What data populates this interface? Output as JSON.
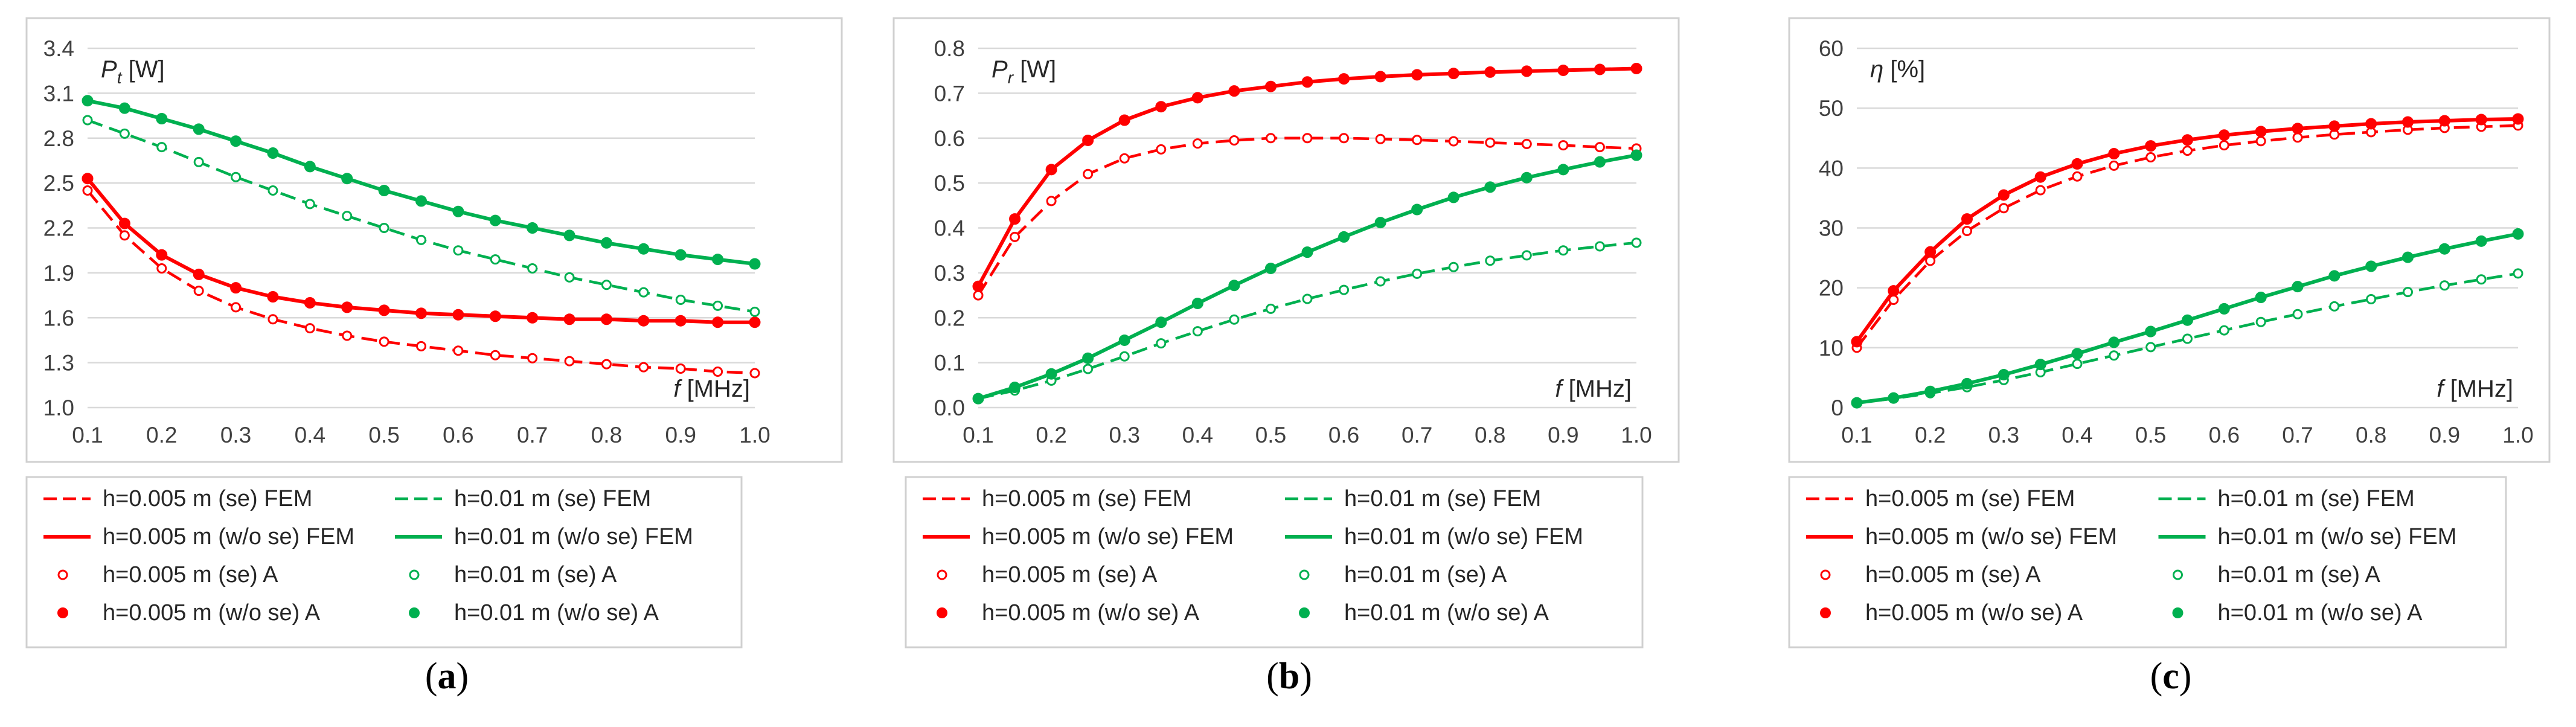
{
  "colors": {
    "red": "#FF0000",
    "green": "#00B050",
    "grid": "#D9D9D9",
    "border": "#D0D0D0"
  },
  "legend_entries": [
    "h=0.005 m (se) FEM",
    "h=0.01 m (se) FEM",
    "h=0.005 m (w/o se) FEM",
    "h=0.01 m (w/o se) FEM",
    "h=0.005 m (se) A",
    "h=0.01 m (se) A",
    "h=0.005 m (w/o se) A",
    "h=0.01 m (w/o se) A"
  ],
  "chart_data": [
    {
      "type": "line",
      "panel": "(a)",
      "panel_letter": "a",
      "ylabel": "P",
      "ylabel_sub": "t",
      "ylabel_unit": " [W]",
      "xlabel": "f",
      "xlabel_unit": " [MHz]",
      "xlim": [
        0.1,
        1.0
      ],
      "ylim": [
        1.0,
        3.4
      ],
      "yticks": [
        1.0,
        1.3,
        1.6,
        1.9,
        2.2,
        2.5,
        2.8,
        3.1,
        3.4
      ],
      "ytick_labels": [
        "1.0",
        "1.3",
        "1.6",
        "1.9",
        "2.2",
        "2.5",
        "2.8",
        "3.1",
        "3.4"
      ],
      "xticks": [
        0.1,
        0.2,
        0.3,
        0.4,
        0.5,
        0.6,
        0.7,
        0.8,
        0.9,
        1.0
      ],
      "xtick_labels": [
        "0.1",
        "0.2",
        "0.3",
        "0.4",
        "0.5",
        "0.6",
        "0.7",
        "0.8",
        "0.9",
        "1.0"
      ],
      "x": [
        0.1,
        0.15,
        0.2,
        0.25,
        0.3,
        0.35,
        0.4,
        0.45,
        0.5,
        0.55,
        0.6,
        0.65,
        0.7,
        0.75,
        0.8,
        0.85,
        0.9,
        0.95,
        1.0
      ],
      "series": [
        {
          "name": "h=0.005 m (se)",
          "color": "red",
          "values": [
            2.45,
            2.15,
            1.93,
            1.78,
            1.67,
            1.59,
            1.53,
            1.48,
            1.44,
            1.41,
            1.38,
            1.35,
            1.33,
            1.31,
            1.29,
            1.27,
            1.26,
            1.24,
            1.23
          ]
        },
        {
          "name": "h=0.005 m (w/o se)",
          "color": "red",
          "values": [
            2.53,
            2.23,
            2.02,
            1.89,
            1.8,
            1.74,
            1.7,
            1.67,
            1.65,
            1.63,
            1.62,
            1.61,
            1.6,
            1.59,
            1.59,
            1.58,
            1.58,
            1.57,
            1.57
          ]
        },
        {
          "name": "h=0.01 m (se)",
          "color": "green",
          "values": [
            2.92,
            2.83,
            2.74,
            2.64,
            2.54,
            2.45,
            2.36,
            2.28,
            2.2,
            2.12,
            2.05,
            1.99,
            1.93,
            1.87,
            1.82,
            1.77,
            1.72,
            1.68,
            1.64
          ]
        },
        {
          "name": "h=0.01 m (w/o se)",
          "color": "green",
          "values": [
            3.05,
            3.0,
            2.93,
            2.86,
            2.78,
            2.7,
            2.61,
            2.53,
            2.45,
            2.38,
            2.31,
            2.25,
            2.2,
            2.15,
            2.1,
            2.06,
            2.02,
            1.99,
            1.96
          ]
        }
      ]
    },
    {
      "type": "line",
      "panel": "(b)",
      "panel_letter": "b",
      "ylabel": "P",
      "ylabel_sub": "r",
      "ylabel_unit": " [W]",
      "xlabel": "f",
      "xlabel_unit": " [MHz]",
      "xlim": [
        0.1,
        1.0
      ],
      "ylim": [
        0.0,
        0.8
      ],
      "yticks": [
        0.0,
        0.1,
        0.2,
        0.3,
        0.4,
        0.5,
        0.6,
        0.7,
        0.8
      ],
      "ytick_labels": [
        "0.0",
        "0.1",
        "0.2",
        "0.3",
        "0.4",
        "0.5",
        "0.6",
        "0.7",
        "0.8"
      ],
      "xticks": [
        0.1,
        0.2,
        0.3,
        0.4,
        0.5,
        0.6,
        0.7,
        0.8,
        0.9,
        1.0
      ],
      "xtick_labels": [
        "0.1",
        "0.2",
        "0.3",
        "0.4",
        "0.5",
        "0.6",
        "0.7",
        "0.8",
        "0.9",
        "1.0"
      ],
      "x": [
        0.1,
        0.15,
        0.2,
        0.25,
        0.3,
        0.35,
        0.4,
        0.45,
        0.5,
        0.55,
        0.6,
        0.65,
        0.7,
        0.75,
        0.8,
        0.85,
        0.9,
        0.95,
        1.0
      ],
      "series": [
        {
          "name": "h=0.005 m (se)",
          "color": "red",
          "values": [
            0.25,
            0.38,
            0.46,
            0.52,
            0.555,
            0.575,
            0.588,
            0.595,
            0.6,
            0.6,
            0.6,
            0.598,
            0.596,
            0.593,
            0.59,
            0.587,
            0.584,
            0.58,
            0.577
          ]
        },
        {
          "name": "h=0.005 m (w/o se)",
          "color": "red",
          "values": [
            0.27,
            0.42,
            0.53,
            0.595,
            0.64,
            0.67,
            0.69,
            0.705,
            0.715,
            0.725,
            0.732,
            0.737,
            0.741,
            0.744,
            0.747,
            0.749,
            0.751,
            0.753,
            0.755
          ]
        },
        {
          "name": "h=0.01 m (se)",
          "color": "green",
          "values": [
            0.02,
            0.038,
            0.06,
            0.086,
            0.114,
            0.143,
            0.17,
            0.196,
            0.22,
            0.242,
            0.262,
            0.281,
            0.298,
            0.313,
            0.327,
            0.339,
            0.35,
            0.359,
            0.367
          ]
        },
        {
          "name": "h=0.01 m (w/o se)",
          "color": "green",
          "values": [
            0.02,
            0.045,
            0.075,
            0.11,
            0.15,
            0.19,
            0.232,
            0.272,
            0.31,
            0.346,
            0.38,
            0.412,
            0.441,
            0.468,
            0.491,
            0.512,
            0.53,
            0.547,
            0.562
          ]
        }
      ]
    },
    {
      "type": "line",
      "panel": "(c)",
      "panel_letter": "c",
      "ylabel": "η",
      "ylabel_sub": "",
      "ylabel_unit": " [%]",
      "xlabel": "f",
      "xlabel_unit": " [MHz]",
      "xlim": [
        0.1,
        1.0
      ],
      "ylim": [
        0,
        60
      ],
      "yticks": [
        0,
        10,
        20,
        30,
        40,
        50,
        60
      ],
      "ytick_labels": [
        "0",
        "10",
        "20",
        "30",
        "40",
        "50",
        "60"
      ],
      "xticks": [
        0.1,
        0.2,
        0.3,
        0.4,
        0.5,
        0.6,
        0.7,
        0.8,
        0.9,
        1.0
      ],
      "xtick_labels": [
        "0.1",
        "0.2",
        "0.3",
        "0.4",
        "0.5",
        "0.6",
        "0.7",
        "0.8",
        "0.9",
        "1.0"
      ],
      "x": [
        0.1,
        0.15,
        0.2,
        0.25,
        0.3,
        0.35,
        0.4,
        0.45,
        0.5,
        0.55,
        0.6,
        0.65,
        0.7,
        0.75,
        0.8,
        0.85,
        0.9,
        0.95,
        1.0
      ],
      "series": [
        {
          "name": "h=0.005 m (se)",
          "color": "red",
          "values": [
            10,
            18,
            24.5,
            29.5,
            33.3,
            36.3,
            38.6,
            40.4,
            41.8,
            42.9,
            43.8,
            44.5,
            45.1,
            45.6,
            46.0,
            46.4,
            46.7,
            46.9,
            47.1
          ]
        },
        {
          "name": "h=0.005 m (w/o se)",
          "color": "red",
          "values": [
            11,
            19.5,
            26,
            31.5,
            35.5,
            38.5,
            40.7,
            42.4,
            43.7,
            44.7,
            45.5,
            46.1,
            46.6,
            47.0,
            47.4,
            47.7,
            47.9,
            48.1,
            48.2
          ]
        },
        {
          "name": "h=0.01 m (se)",
          "color": "green",
          "values": [
            0.8,
            1.5,
            2.4,
            3.4,
            4.6,
            5.9,
            7.3,
            8.7,
            10.1,
            11.5,
            12.9,
            14.3,
            15.6,
            16.9,
            18.1,
            19.3,
            20.4,
            21.4,
            22.4
          ]
        },
        {
          "name": "h=0.01 m (w/o se)",
          "color": "green",
          "values": [
            0.8,
            1.6,
            2.7,
            4.0,
            5.5,
            7.2,
            9.0,
            10.9,
            12.7,
            14.6,
            16.5,
            18.4,
            20.2,
            22.0,
            23.6,
            25.1,
            26.5,
            27.8,
            29.0
          ]
        }
      ]
    }
  ]
}
